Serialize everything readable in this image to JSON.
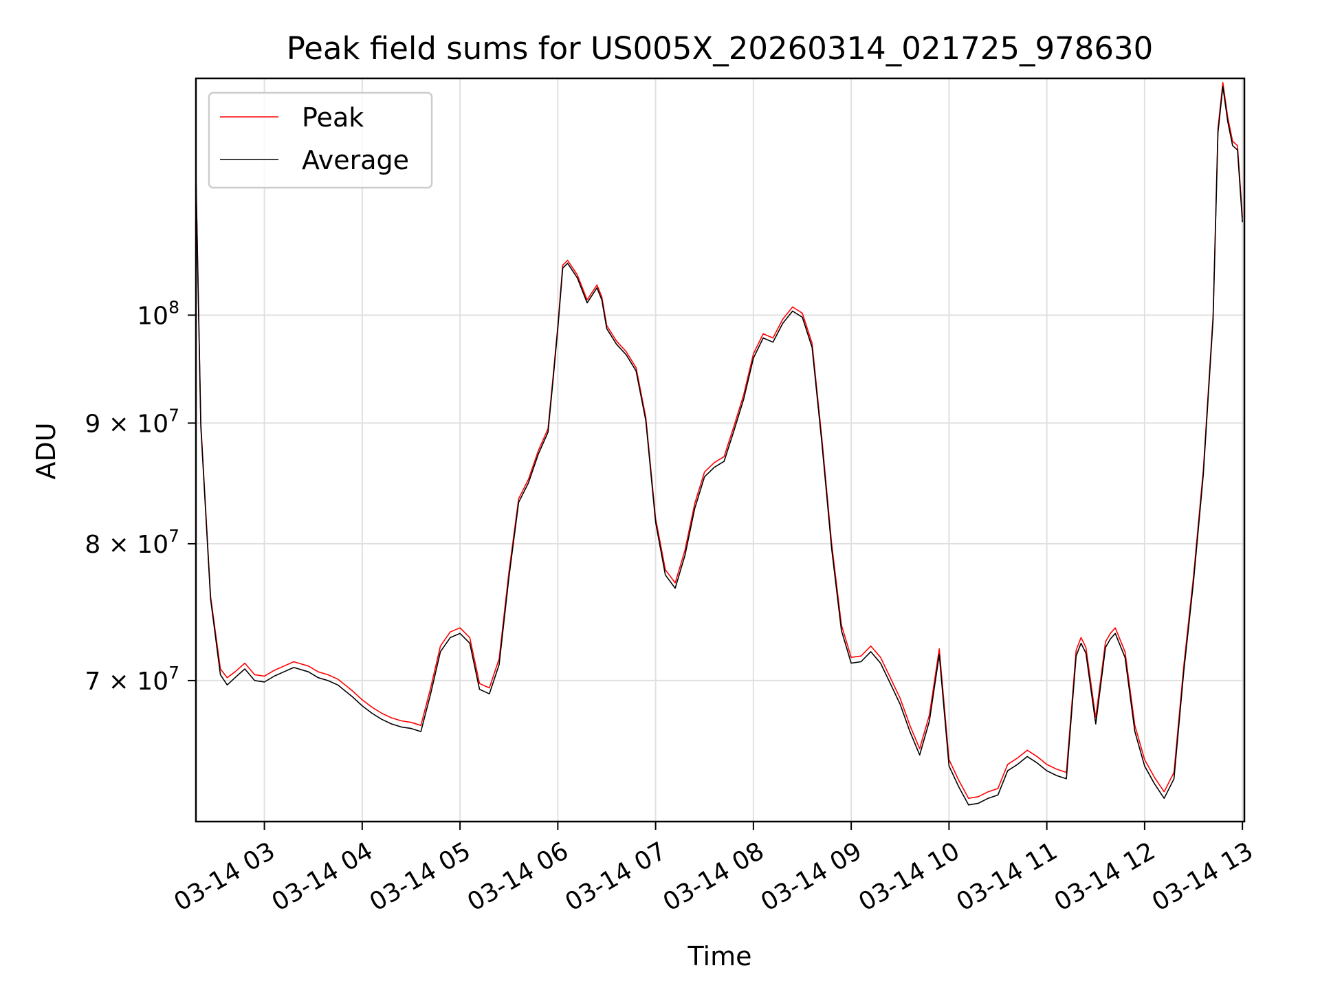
{
  "chart_data": {
    "type": "line",
    "title": "Peak field sums for US005X_20260314_021725_978630",
    "xlabel": "Time",
    "ylabel": "ADU",
    "yscale": "log",
    "xlim": [
      2.3,
      13.02
    ],
    "ylim": [
      61000000,
      126000000
    ],
    "grid": true,
    "legend_position": "upper-left",
    "x_ticks": [
      {
        "value": 3,
        "label": "03-14 03"
      },
      {
        "value": 4,
        "label": "03-14 04"
      },
      {
        "value": 5,
        "label": "03-14 05"
      },
      {
        "value": 6,
        "label": "03-14 06"
      },
      {
        "value": 7,
        "label": "03-14 07"
      },
      {
        "value": 8,
        "label": "03-14 08"
      },
      {
        "value": 9,
        "label": "03-14 09"
      },
      {
        "value": 10,
        "label": "03-14 10"
      },
      {
        "value": 11,
        "label": "03-14 11"
      },
      {
        "value": 12,
        "label": "03-14 12"
      },
      {
        "value": 13,
        "label": "03-14 13"
      }
    ],
    "y_ticks": [
      {
        "value": 70000000,
        "label": "7 × 10",
        "exp": "7"
      },
      {
        "value": 80000000,
        "label": "8 × 10",
        "exp": "7"
      },
      {
        "value": 90000000,
        "label": "9 × 10",
        "exp": "7"
      },
      {
        "value": 100000000,
        "label": "10",
        "exp": "8"
      }
    ],
    "x_unit": "hours (2026-03-14)",
    "series": [
      {
        "name": "Peak",
        "color": "#ff0000",
        "x": [
          2.3,
          2.35,
          2.45,
          2.55,
          2.62,
          2.7,
          2.8,
          2.9,
          3.0,
          3.1,
          3.2,
          3.3,
          3.35,
          3.45,
          3.55,
          3.65,
          3.75,
          3.9,
          4.0,
          4.1,
          4.2,
          4.3,
          4.4,
          4.5,
          4.6,
          4.7,
          4.8,
          4.9,
          5.0,
          5.1,
          5.2,
          5.3,
          5.4,
          5.5,
          5.6,
          5.7,
          5.8,
          5.9,
          5.95,
          6.0,
          6.05,
          6.1,
          6.2,
          6.3,
          6.4,
          6.45,
          6.5,
          6.6,
          6.7,
          6.8,
          6.9,
          7.0,
          7.1,
          7.2,
          7.3,
          7.4,
          7.5,
          7.6,
          7.7,
          7.8,
          7.9,
          8.0,
          8.1,
          8.2,
          8.3,
          8.4,
          8.5,
          8.6,
          8.7,
          8.8,
          8.9,
          9.0,
          9.1,
          9.2,
          9.3,
          9.4,
          9.5,
          9.6,
          9.7,
          9.8,
          9.9,
          10.0,
          10.1,
          10.2,
          10.3,
          10.4,
          10.5,
          10.6,
          10.7,
          10.8,
          10.9,
          11.0,
          11.1,
          11.2,
          11.3,
          11.35,
          11.4,
          11.5,
          11.6,
          11.65,
          11.7,
          11.8,
          11.9,
          12.0,
          12.1,
          12.2,
          12.3,
          12.4,
          12.5,
          12.6,
          12.7,
          12.75,
          12.8,
          12.85,
          12.9,
          12.95,
          13.0
        ],
        "y": [
          115000000,
          90000000,
          76000000,
          70800000,
          70200000,
          70600000,
          71200000,
          70400000,
          70300000,
          70700000,
          71000000,
          71300000,
          71200000,
          71000000,
          70600000,
          70400000,
          70100000,
          69300000,
          68700000,
          68200000,
          67800000,
          67500000,
          67300000,
          67200000,
          67000000,
          69500000,
          72400000,
          73400000,
          73700000,
          73000000,
          69800000,
          69500000,
          71500000,
          77800000,
          83600000,
          85200000,
          87600000,
          89500000,
          94000000,
          99000000,
          105000000,
          105500000,
          104000000,
          101500000,
          103000000,
          101800000,
          99000000,
          97500000,
          96500000,
          95000000,
          90500000,
          82000000,
          78000000,
          77000000,
          79500000,
          83200000,
          85800000,
          86600000,
          87100000,
          89700000,
          92500000,
          96300000,
          98200000,
          97800000,
          99600000,
          100800000,
          100200000,
          97300000,
          88700000,
          80000000,
          73900000,
          71600000,
          71700000,
          72400000,
          71600000,
          70200000,
          68800000,
          67000000,
          65500000,
          67700000,
          72200000,
          64800000,
          63500000,
          62400000,
          62500000,
          62800000,
          63000000,
          64500000,
          64900000,
          65400000,
          65000000,
          64500000,
          64200000,
          64000000,
          72100000,
          73000000,
          72300000,
          67500000,
          72700000,
          73300000,
          73700000,
          72000000,
          67000000,
          64800000,
          63700000,
          62800000,
          64000000,
          71000000,
          77500000,
          86000000,
          100000000,
          120000000,
          125500000,
          121300000,
          118500000,
          118000000,
          110000000
        ]
      },
      {
        "name": "Average",
        "color": "#000000",
        "x": [
          2.3,
          2.35,
          2.45,
          2.55,
          2.62,
          2.7,
          2.8,
          2.9,
          3.0,
          3.1,
          3.2,
          3.3,
          3.35,
          3.45,
          3.55,
          3.65,
          3.75,
          3.9,
          4.0,
          4.1,
          4.2,
          4.3,
          4.4,
          4.5,
          4.6,
          4.7,
          4.8,
          4.9,
          5.0,
          5.1,
          5.2,
          5.3,
          5.4,
          5.5,
          5.6,
          5.7,
          5.8,
          5.9,
          5.95,
          6.0,
          6.05,
          6.1,
          6.2,
          6.3,
          6.4,
          6.45,
          6.5,
          6.6,
          6.7,
          6.8,
          6.9,
          7.0,
          7.1,
          7.2,
          7.3,
          7.4,
          7.5,
          7.6,
          7.7,
          7.8,
          7.9,
          8.0,
          8.1,
          8.2,
          8.3,
          8.4,
          8.5,
          8.6,
          8.7,
          8.8,
          8.9,
          9.0,
          9.1,
          9.2,
          9.3,
          9.4,
          9.5,
          9.6,
          9.7,
          9.8,
          9.9,
          10.0,
          10.1,
          10.2,
          10.3,
          10.4,
          10.5,
          10.6,
          10.7,
          10.8,
          10.9,
          11.0,
          11.1,
          11.2,
          11.3,
          11.35,
          11.4,
          11.5,
          11.6,
          11.65,
          11.7,
          11.8,
          11.9,
          12.0,
          12.1,
          12.2,
          12.3,
          12.4,
          12.5,
          12.6,
          12.7,
          12.75,
          12.8,
          12.85,
          12.9,
          12.95,
          13.0
        ],
        "y": [
          114500000,
          89700000,
          75800000,
          70400000,
          69700000,
          70200000,
          70800000,
          70000000,
          69900000,
          70300000,
          70600000,
          70900000,
          70800000,
          70600000,
          70200000,
          70000000,
          69700000,
          68900000,
          68300000,
          67800000,
          67400000,
          67100000,
          66900000,
          66800000,
          66600000,
          69100000,
          72000000,
          73000000,
          73300000,
          72600000,
          69400000,
          69100000,
          71100000,
          77400000,
          83300000,
          84900000,
          87300000,
          89200000,
          93700000,
          98700000,
          104700000,
          105200000,
          103700000,
          101200000,
          102700000,
          101500000,
          98700000,
          97200000,
          96200000,
          94700000,
          90200000,
          81700000,
          77600000,
          76600000,
          79100000,
          82800000,
          85400000,
          86200000,
          86700000,
          89300000,
          92100000,
          95900000,
          97800000,
          97400000,
          99200000,
          100400000,
          99800000,
          96900000,
          88300000,
          79600000,
          73500000,
          71200000,
          71300000,
          72000000,
          71200000,
          69800000,
          68400000,
          66600000,
          65100000,
          67300000,
          71800000,
          64400000,
          63100000,
          62000000,
          62100000,
          62400000,
          62600000,
          64100000,
          64500000,
          65000000,
          64600000,
          64100000,
          63800000,
          63600000,
          71700000,
          72600000,
          71900000,
          67100000,
          72300000,
          72900000,
          73300000,
          71600000,
          66600000,
          64400000,
          63300000,
          62400000,
          63600000,
          70600000,
          77100000,
          85600000,
          99600000,
          119500000,
          125000000,
          120800000,
          118000000,
          117500000,
          109500000
        ]
      }
    ]
  }
}
